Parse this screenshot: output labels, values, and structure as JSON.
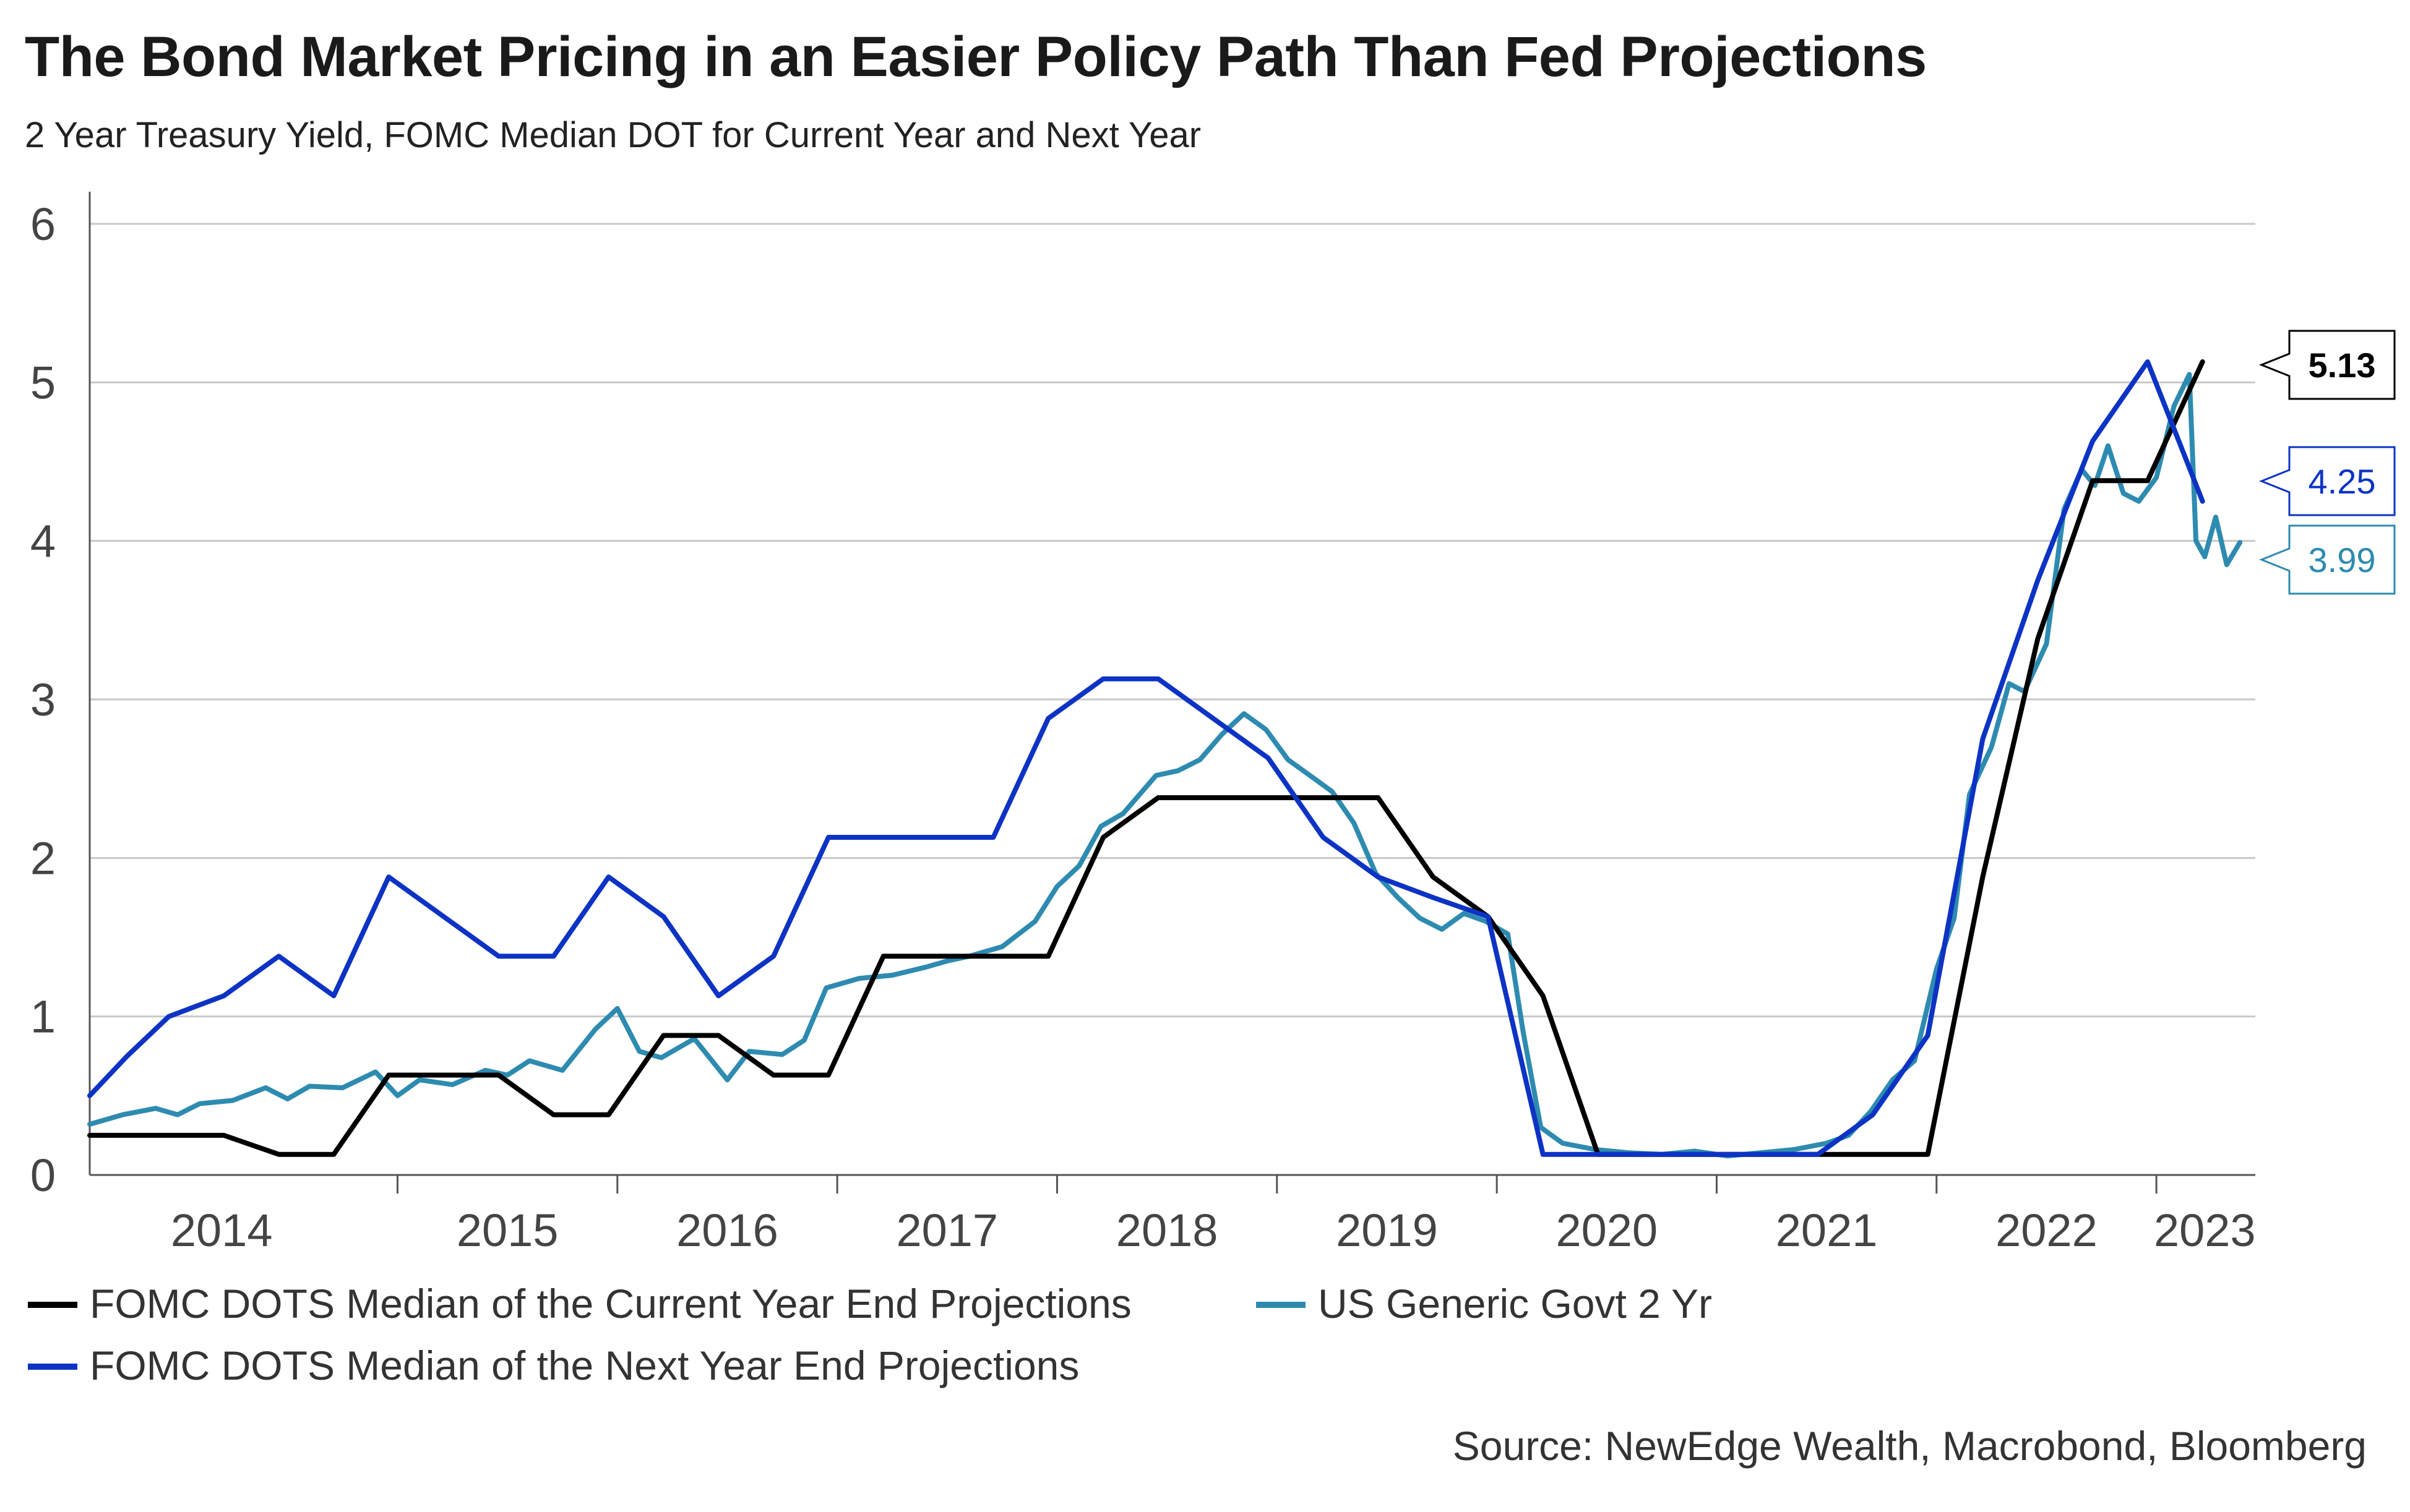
{
  "title": "The Bond Market Pricing in an Easier Policy Path Than Fed Projections",
  "subtitle": "2 Year Treasury Yield, FOMC Median DOT for Current Year and Next Year",
  "source": "Source: NewEdge Wealth, Macrobond, Bloomberg",
  "colors": {
    "current_year": "#000000",
    "next_year": "#0d33c4",
    "two_year": "#2e8bb0",
    "grid": "#c8c8c8",
    "axis": "#555555"
  },
  "chart_data": {
    "type": "line",
    "xlabel": "",
    "ylabel": "",
    "ylim": [
      0,
      6
    ],
    "y_ticks": [
      "0",
      "1",
      "2",
      "3",
      "4",
      "5",
      "6"
    ],
    "x_range": [
      2013.6,
      2023.45
    ],
    "x_ticks": [
      "2014",
      "2015",
      "2016",
      "2017",
      "2018",
      "2019",
      "2020",
      "2021",
      "2022",
      "2023"
    ],
    "grid": "horizontal",
    "legend_position": "bottom",
    "series": [
      {
        "name": "FOMC DOTS Median of the Current Year End Projections",
        "key": "current_year",
        "color": "#000000",
        "x": [
          2013.6,
          2013.96,
          2014.21,
          2014.46,
          2014.71,
          2014.96,
          2015.21,
          2015.46,
          2015.71,
          2015.96,
          2016.21,
          2016.46,
          2016.71,
          2016.96,
          2017.21,
          2017.46,
          2017.71,
          2017.96,
          2018.21,
          2018.46,
          2018.71,
          2018.96,
          2019.21,
          2019.46,
          2019.71,
          2019.96,
          2020.21,
          2020.46,
          2020.71,
          2020.96,
          2021.21,
          2021.46,
          2021.71,
          2021.96,
          2022.21,
          2022.46,
          2022.71,
          2022.96,
          2023.21
        ],
        "y": [
          0.25,
          0.25,
          0.25,
          0.13,
          0.13,
          0.63,
          0.63,
          0.63,
          0.38,
          0.38,
          0.88,
          0.88,
          0.63,
          0.63,
          1.38,
          1.38,
          1.38,
          1.38,
          2.13,
          2.38,
          2.38,
          2.38,
          2.38,
          2.38,
          1.88,
          1.63,
          1.13,
          0.13,
          0.13,
          0.13,
          0.13,
          0.13,
          0.13,
          0.13,
          1.88,
          3.38,
          4.38,
          4.38,
          5.13
        ]
      },
      {
        "name": "FOMC DOTS Median of the Next Year End Projections",
        "key": "next_year",
        "color": "#0d33c4",
        "x": [
          2013.6,
          2013.77,
          2013.96,
          2014.21,
          2014.46,
          2014.71,
          2014.96,
          2015.21,
          2015.46,
          2015.71,
          2015.96,
          2016.21,
          2016.46,
          2016.71,
          2016.96,
          2017.21,
          2017.46,
          2017.71,
          2017.96,
          2018.21,
          2018.46,
          2018.71,
          2018.96,
          2019.21,
          2019.46,
          2019.71,
          2019.96,
          2020.21,
          2020.46,
          2020.71,
          2020.96,
          2021.21,
          2021.46,
          2021.71,
          2021.96,
          2022.21,
          2022.46,
          2022.71,
          2022.96,
          2023.21
        ],
        "y": [
          0.5,
          0.75,
          1.0,
          1.13,
          1.38,
          1.13,
          1.88,
          1.63,
          1.38,
          1.38,
          1.88,
          1.63,
          1.13,
          1.38,
          2.13,
          2.13,
          2.13,
          2.13,
          2.88,
          3.13,
          3.13,
          2.88,
          2.63,
          2.13,
          1.88,
          1.75,
          1.63,
          0.13,
          0.13,
          0.13,
          0.13,
          0.13,
          0.13,
          0.38,
          0.88,
          2.75,
          3.75,
          4.63,
          5.13,
          4.25
        ]
      },
      {
        "name": "US Generic Govt 2 Yr",
        "key": "two_year",
        "color": "#2e8bb0",
        "x": [
          2013.6,
          2013.75,
          2013.9,
          2014.0,
          2014.1,
          2014.25,
          2014.4,
          2014.5,
          2014.6,
          2014.75,
          2014.9,
          2015.0,
          2015.1,
          2015.25,
          2015.4,
          2015.5,
          2015.6,
          2015.75,
          2015.9,
          2016.0,
          2016.1,
          2016.2,
          2016.35,
          2016.5,
          2016.6,
          2016.75,
          2016.85,
          2016.95,
          2017.1,
          2017.25,
          2017.4,
          2017.5,
          2017.6,
          2017.75,
          2017.9,
          2018.0,
          2018.1,
          2018.2,
          2018.3,
          2018.45,
          2018.55,
          2018.65,
          2018.75,
          2018.85,
          2018.95,
          2019.05,
          2019.15,
          2019.25,
          2019.35,
          2019.45,
          2019.55,
          2019.65,
          2019.75,
          2019.85,
          2019.95,
          2020.05,
          2020.12,
          2020.2,
          2020.3,
          2020.45,
          2020.6,
          2020.75,
          2020.9,
          2021.05,
          2021.2,
          2021.35,
          2021.5,
          2021.6,
          2021.7,
          2021.8,
          2021.9,
          2022.0,
          2022.08,
          2022.15,
          2022.25,
          2022.33,
          2022.4,
          2022.5,
          2022.58,
          2022.66,
          2022.72,
          2022.78,
          2022.85,
          2022.92,
          2023.0,
          2023.08,
          2023.15,
          2023.18,
          2023.22,
          2023.27,
          2023.32,
          2023.38
        ],
        "y": [
          0.32,
          0.38,
          0.42,
          0.38,
          0.45,
          0.47,
          0.55,
          0.48,
          0.56,
          0.55,
          0.65,
          0.5,
          0.6,
          0.57,
          0.66,
          0.63,
          0.72,
          0.66,
          0.92,
          1.05,
          0.78,
          0.74,
          0.86,
          0.6,
          0.78,
          0.76,
          0.85,
          1.18,
          1.24,
          1.26,
          1.31,
          1.35,
          1.38,
          1.44,
          1.6,
          1.82,
          1.95,
          2.2,
          2.28,
          2.52,
          2.55,
          2.62,
          2.78,
          2.91,
          2.81,
          2.62,
          2.52,
          2.42,
          2.22,
          1.9,
          1.75,
          1.62,
          1.55,
          1.65,
          1.6,
          1.52,
          0.9,
          0.3,
          0.2,
          0.16,
          0.14,
          0.13,
          0.15,
          0.12,
          0.14,
          0.16,
          0.2,
          0.25,
          0.4,
          0.6,
          0.72,
          1.3,
          1.62,
          2.4,
          2.7,
          3.1,
          3.05,
          3.35,
          4.2,
          4.45,
          4.35,
          4.6,
          4.3,
          4.25,
          4.4,
          4.85,
          5.05,
          4.0,
          3.9,
          4.15,
          3.85,
          3.99
        ]
      }
    ],
    "callouts": [
      {
        "series": "current_year",
        "text": "5.13",
        "value": 5.13
      },
      {
        "series": "next_year",
        "text": "4.25",
        "value": 4.25
      },
      {
        "series": "two_year",
        "text": "3.99",
        "value": 3.99
      }
    ]
  },
  "legend": {
    "row1_left": "FOMC DOTS Median of the Current Year End Projections",
    "row1_right": "US Generic Govt 2 Yr",
    "row2_left": "FOMC DOTS Median of the Next Year End Projections"
  }
}
